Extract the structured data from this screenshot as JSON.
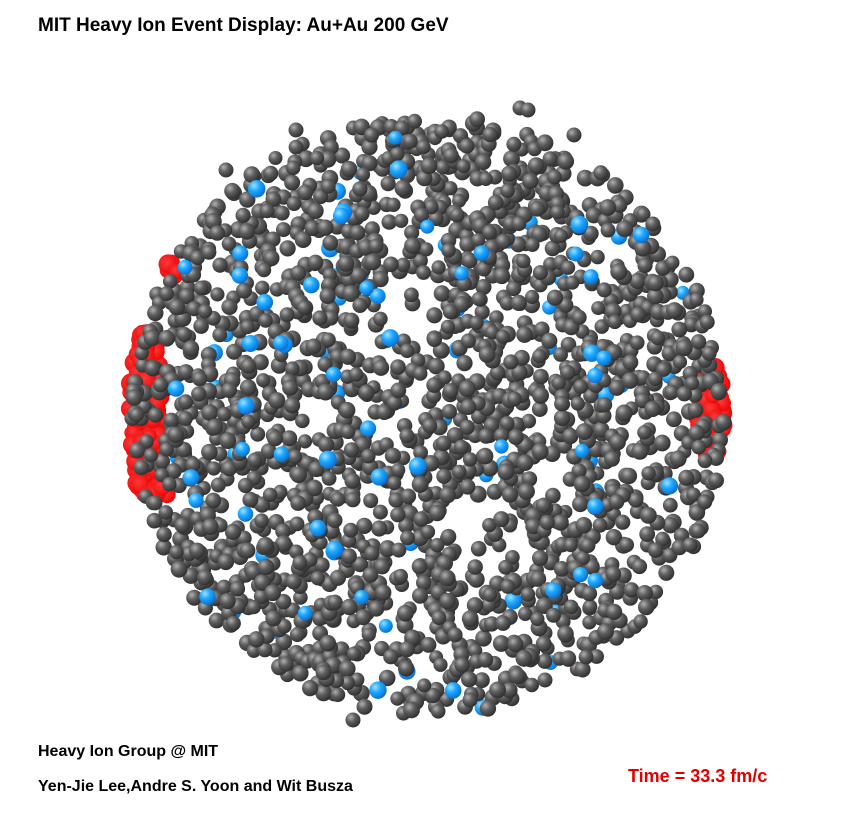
{
  "header": {
    "title": "MIT Heavy Ion Event Display: Au+Au 200 GeV"
  },
  "footer": {
    "group": "Heavy Ion Group @ MIT",
    "authors": "Yen-Jie Lee,Andre S. Yoon and Wit Busza",
    "time_readout": "Time = 33.3 fm/c"
  },
  "colors": {
    "background": "#ffffff",
    "gray_particle": "#555555",
    "blue_particle": "#1aa7ff",
    "spectator_red": "#ff0000",
    "time_text": "#e00000"
  },
  "particle_types": [
    "gray-particle",
    "blue-particle",
    "red-spectator"
  ]
}
